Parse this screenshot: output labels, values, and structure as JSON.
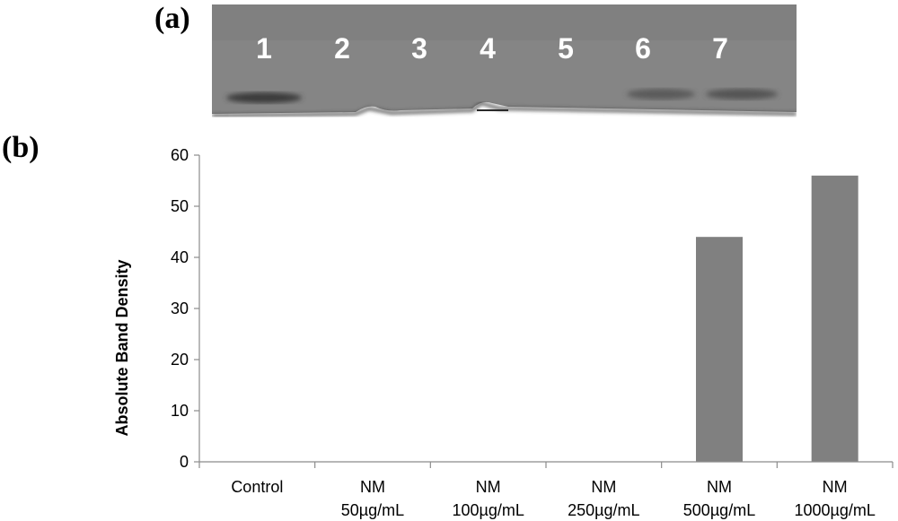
{
  "panels": {
    "a_label": "(a)",
    "b_label": "(b)"
  },
  "gel": {
    "lanes": [
      "1",
      "2",
      "3",
      "4",
      "5",
      "6",
      "7"
    ],
    "colors": {
      "background": "#858585",
      "band": "#3a3a3a",
      "label": "#ffffff"
    }
  },
  "chart_data": {
    "type": "bar",
    "categories": [
      [
        "Control"
      ],
      [
        "NM",
        "50µg/mL"
      ],
      [
        "NM",
        "100µg/mL"
      ],
      [
        "NM",
        "250µg/mL"
      ],
      [
        "NM",
        "500µg/mL"
      ],
      [
        "NM",
        "1000µg/mL"
      ]
    ],
    "values": [
      0,
      0,
      0,
      0,
      44,
      56
    ],
    "title": "",
    "xlabel": "",
    "ylabel": "Absolute Band Density",
    "ylim": [
      0,
      60
    ],
    "yticks": [
      0,
      10,
      20,
      30,
      40,
      50,
      60
    ],
    "grid": false,
    "colors": {
      "bar": "#808080",
      "axis": "#8c8c8c"
    }
  }
}
